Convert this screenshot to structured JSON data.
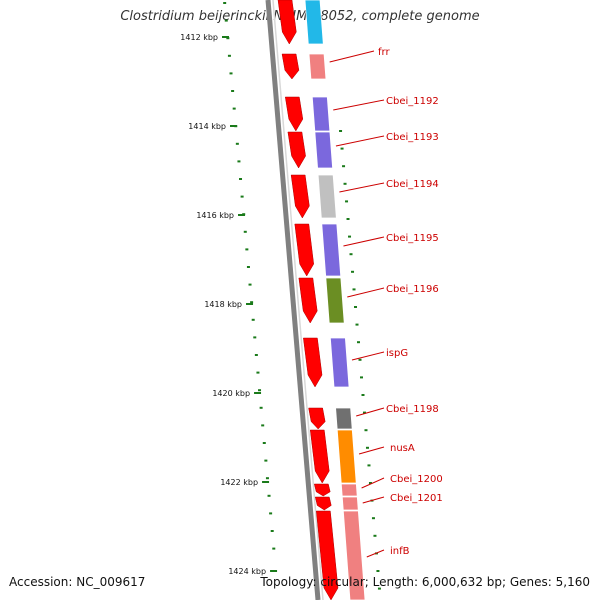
{
  "header": {
    "title": "Clostridium beijerinckii NCIMB 8052, complete genome"
  },
  "footer": {
    "accession": "Accession: NC_009617",
    "topology": "Topology: circular; Length: 6,000,632 bp; Genes: 5,160"
  },
  "ruler_ticks": [
    "1412 kbp",
    "1414 kbp",
    "1416 kbp",
    "1418 kbp",
    "1420 kbp",
    "1422 kbp",
    "1424 kbp"
  ],
  "genes": [
    {
      "name": "",
      "strand_color": "#ff0000",
      "function_color": "#22b8e8"
    },
    {
      "name": "frr",
      "strand_color": "#ff0000",
      "function_color": "#f08080"
    },
    {
      "name": "Cbei_1192",
      "strand_color": "#ff0000",
      "function_color": "#7b68dd"
    },
    {
      "name": "Cbei_1193",
      "strand_color": "#ff0000",
      "function_color": "#7b68dd"
    },
    {
      "name": "Cbei_1194",
      "strand_color": "#ff0000",
      "function_color": "#c0c0c0"
    },
    {
      "name": "Cbei_1195",
      "strand_color": "#ff0000",
      "function_color": "#7b68dd"
    },
    {
      "name": "Cbei_1196",
      "strand_color": "#ff0000",
      "function_color": "#6b8e23"
    },
    {
      "name": "ispG",
      "strand_color": "#ff0000",
      "function_color": "#7b68dd"
    },
    {
      "name": "Cbei_1198",
      "strand_color": "#ff0000",
      "function_color": "#707070"
    },
    {
      "name": "nusA",
      "strand_color": "#ff0000",
      "function_color": "#ff8c00"
    },
    {
      "name": "Cbei_1200",
      "strand_color": "#ff0000",
      "function_color": "#f08080"
    },
    {
      "name": "Cbei_1201",
      "strand_color": "#ff0000",
      "function_color": "#f08080"
    },
    {
      "name": "infB",
      "strand_color": "#ff0000",
      "function_color": "#f08080"
    }
  ],
  "colors": {
    "backbone": "#808080",
    "gc_skew_dots": "#1a7a1a",
    "gene_label": "#cc0000",
    "leader_line": "#cc0000"
  }
}
